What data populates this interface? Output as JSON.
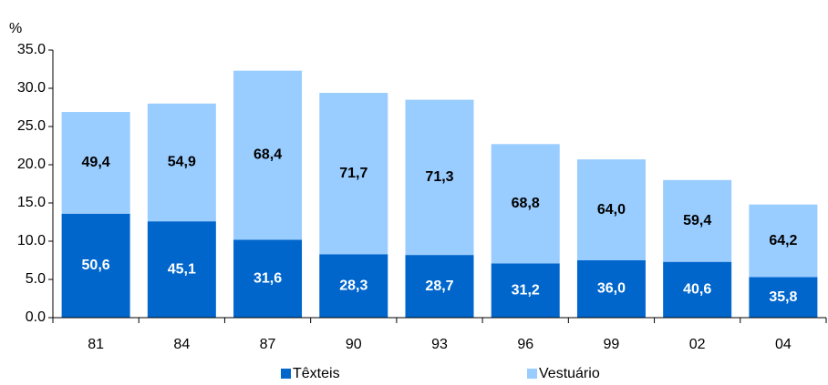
{
  "chart_data": {
    "type": "stacked_bar",
    "y_label": "%",
    "categories": [
      "81",
      "84",
      "87",
      "90",
      "93",
      "96",
      "99",
      "02",
      "04"
    ],
    "series": [
      {
        "name": "Têxteis",
        "color": "#0066cc",
        "values": [
          13.6,
          12.6,
          10.2,
          8.3,
          8.2,
          7.1,
          7.5,
          7.3,
          5.3
        ],
        "labels": [
          "50,6",
          "45,1",
          "31,6",
          "28,3",
          "28,7",
          "31,2",
          "36,0",
          "40,6",
          "35,8"
        ]
      },
      {
        "name": "Vestuário",
        "color": "#99ccff",
        "values": [
          13.3,
          15.4,
          22.1,
          21.1,
          20.3,
          15.6,
          13.2,
          10.7,
          9.5
        ],
        "labels": [
          "49,4",
          "54,9",
          "68,4",
          "71,7",
          "71,3",
          "68,8",
          "64,0",
          "59,4",
          "64,2"
        ]
      }
    ],
    "ylim": [
      0,
      35
    ],
    "yticks": [
      {
        "value": 0,
        "label": "0.0"
      },
      {
        "value": 5,
        "label": "5.0"
      },
      {
        "value": 10,
        "label": "10.0"
      },
      {
        "value": 15,
        "label": "15.0"
      },
      {
        "value": 20,
        "label": "20.0"
      },
      {
        "value": 25,
        "label": "25.0"
      },
      {
        "value": 30,
        "label": "30.0"
      },
      {
        "value": 35,
        "label": "35.0"
      }
    ],
    "legend": "bottom"
  }
}
